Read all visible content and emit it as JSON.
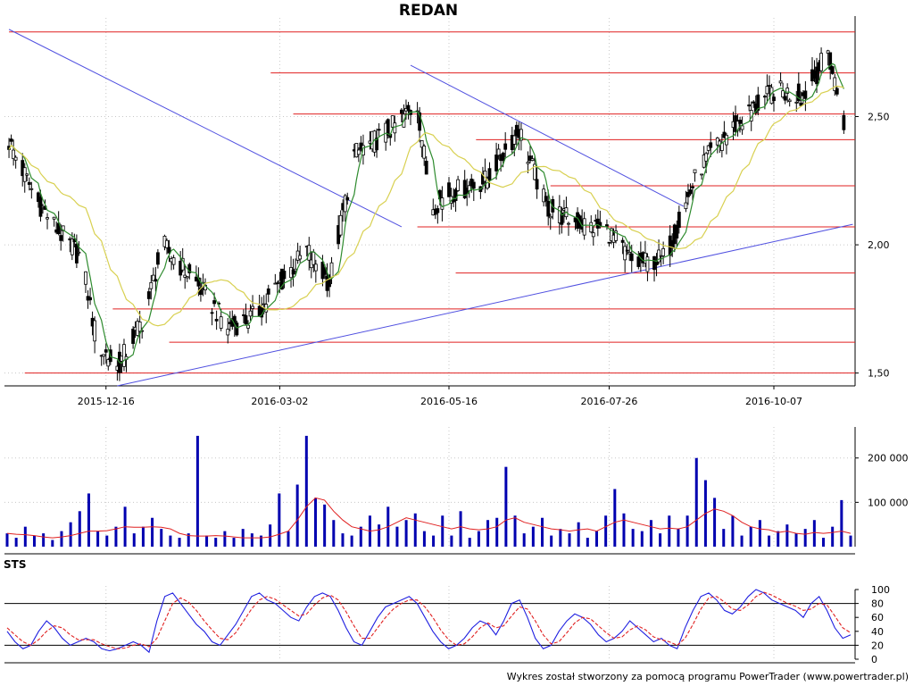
{
  "title": "REDAN",
  "sts_label": "STS",
  "footer": "Wykres został stworzony za pomocą programu PowerTrader (www.powertrader.pl)",
  "colors": {
    "candle": "#000000",
    "ma_short": "#2e8b2e",
    "ma_long": "#d8d050",
    "resistance_line": "#e02020",
    "trend_line": "#5050e0",
    "volume_bar": "#0000b0",
    "volume_ma": "#e02020",
    "stoch_k": "#2020e0",
    "stoch_d": "#e02020"
  },
  "chart_data": [
    {
      "type": "candlestick",
      "title": "REDAN",
      "x_ticks": [
        "2015-12-16",
        "2016-03-02",
        "2016-05-16",
        "2016-07-26",
        "2016-10-07"
      ],
      "y_ticks": [
        "1,50",
        "2,00",
        "2,50"
      ],
      "ylim": [
        1.45,
        2.85
      ],
      "grid": true,
      "approx_close_path": [
        {
          "date": "2015-11-03",
          "close": 2.4
        },
        {
          "date": "2015-11-15",
          "close": 2.18
        },
        {
          "date": "2015-11-25",
          "close": 2.05
        },
        {
          "date": "2015-12-05",
          "close": 1.95
        },
        {
          "date": "2015-12-12",
          "close": 1.62
        },
        {
          "date": "2015-12-21",
          "close": 1.52
        },
        {
          "date": "2016-01-02",
          "close": 1.72
        },
        {
          "date": "2016-01-10",
          "close": 2.0
        },
        {
          "date": "2016-01-25",
          "close": 1.85
        },
        {
          "date": "2016-02-08",
          "close": 1.68
        },
        {
          "date": "2016-02-20",
          "close": 1.72
        },
        {
          "date": "2016-03-02",
          "close": 1.85
        },
        {
          "date": "2016-03-14",
          "close": 1.98
        },
        {
          "date": "2016-03-24",
          "close": 1.85
        },
        {
          "date": "2016-04-04",
          "close": 2.35
        },
        {
          "date": "2016-04-20",
          "close": 2.45
        },
        {
          "date": "2016-05-02",
          "close": 2.55
        },
        {
          "date": "2016-05-08",
          "close": 2.15
        },
        {
          "date": "2016-05-16",
          "close": 2.2
        },
        {
          "date": "2016-06-01",
          "close": 2.25
        },
        {
          "date": "2016-06-16",
          "close": 2.45
        },
        {
          "date": "2016-06-28",
          "close": 2.15
        },
        {
          "date": "2016-07-08",
          "close": 2.1
        },
        {
          "date": "2016-07-26",
          "close": 2.05
        },
        {
          "date": "2016-08-06",
          "close": 1.92
        },
        {
          "date": "2016-08-20",
          "close": 1.95
        },
        {
          "date": "2016-09-04",
          "close": 2.3
        },
        {
          "date": "2016-09-18",
          "close": 2.45
        },
        {
          "date": "2016-10-07",
          "close": 2.6
        },
        {
          "date": "2016-10-20",
          "close": 2.58
        },
        {
          "date": "2016-10-31",
          "close": 2.75
        },
        {
          "date": "2016-11-07",
          "close": 2.48
        }
      ],
      "horizontal_levels": [
        2.83,
        2.67,
        2.51,
        2.41,
        2.23,
        2.07,
        1.89,
        1.75,
        1.62,
        1.5
      ],
      "trend_lines": [
        {
          "from": {
            "date": "2015-11-03",
            "value": 2.84
          },
          "to": {
            "date": "2016-04-25",
            "value": 2.07
          }
        },
        {
          "from": {
            "date": "2016-04-29",
            "value": 2.7
          },
          "to": {
            "date": "2016-08-28",
            "value": 2.15
          }
        },
        {
          "from": {
            "date": "2015-12-21",
            "value": 1.45
          },
          "to": {
            "date": "2016-11-11",
            "value": 2.08
          }
        }
      ]
    },
    {
      "type": "bar",
      "y_ticks": [
        "100 000",
        "200 000"
      ],
      "ylim": [
        0,
        270000
      ],
      "volumes": [
        30000,
        20000,
        45000,
        25000,
        30000,
        15000,
        35000,
        55000,
        80000,
        120000,
        35000,
        25000,
        45000,
        90000,
        30000,
        45000,
        65000,
        40000,
        25000,
        20000,
        30000,
        250000,
        25000,
        20000,
        35000,
        20000,
        40000,
        30000,
        25000,
        50000,
        120000,
        35000,
        140000,
        250000,
        110000,
        95000,
        60000,
        30000,
        25000,
        45000,
        70000,
        50000,
        90000,
        45000,
        60000,
        75000,
        35000,
        25000,
        70000,
        25000,
        80000,
        20000,
        35000,
        60000,
        65000,
        180000,
        70000,
        30000,
        45000,
        65000,
        25000,
        40000,
        30000,
        55000,
        20000,
        35000,
        70000,
        130000,
        75000,
        40000,
        35000,
        60000,
        30000,
        70000,
        40000,
        70000,
        200000,
        150000,
        110000,
        40000,
        70000,
        25000,
        45000,
        60000,
        25000,
        35000,
        50000,
        30000,
        40000,
        60000,
        20000,
        45000,
        105000,
        25000
      ],
      "volume_ma": [
        30000,
        28000,
        27000,
        25000,
        22000,
        20000,
        22000,
        25000,
        30000,
        35000,
        35000,
        36000,
        40000,
        45000,
        44000,
        44000,
        45000,
        44000,
        40000,
        30000,
        25000,
        24000,
        24000,
        25000,
        24000,
        22000,
        20000,
        20000,
        20000,
        22000,
        28000,
        35000,
        60000,
        90000,
        110000,
        105000,
        80000,
        60000,
        45000,
        40000,
        35000,
        38000,
        45000,
        55000,
        65000,
        60000,
        55000,
        50000,
        45000,
        40000,
        45000,
        40000,
        38000,
        40000,
        45000,
        60000,
        65000,
        55000,
        50000,
        45000,
        40000,
        38000,
        35000,
        38000,
        40000,
        35000,
        45000,
        55000,
        60000,
        55000,
        50000,
        45000,
        40000,
        42000,
        40000,
        45000,
        60000,
        75000,
        85000,
        80000,
        70000,
        55000,
        45000,
        40000,
        38000,
        32000,
        35000,
        30000,
        28000,
        32000,
        30000,
        32000,
        35000,
        30000
      ]
    },
    {
      "type": "line",
      "title": "STS",
      "y_ticks": [
        "0",
        "20",
        "40",
        "60",
        "80",
        "100"
      ],
      "ylim": [
        0,
        100
      ],
      "reference_levels": [
        20,
        80
      ],
      "series": [
        {
          "values": [
            40,
            25,
            15,
            20,
            40,
            55,
            45,
            30,
            20,
            25,
            30,
            25,
            15,
            12,
            15,
            20,
            25,
            20,
            10,
            55,
            90,
            95,
            80,
            65,
            50,
            40,
            25,
            20,
            35,
            50,
            70,
            90,
            95,
            85,
            80,
            70,
            60,
            55,
            75,
            90,
            95,
            90,
            70,
            45,
            25,
            20,
            40,
            60,
            75,
            80,
            85,
            90,
            80,
            60,
            40,
            25,
            15,
            20,
            30,
            45,
            55,
            50,
            35,
            55,
            80,
            85,
            60,
            30,
            15,
            20,
            40,
            55,
            65,
            60,
            50,
            35,
            25,
            30,
            40,
            55,
            45,
            35,
            25,
            30,
            20,
            15,
            45,
            70,
            90,
            95,
            85,
            70,
            65,
            75,
            90,
            100,
            95,
            85,
            80,
            75,
            70,
            60,
            80,
            90,
            70,
            45,
            30,
            35
          ]
        },
        {
          "values": [
            45,
            35,
            25,
            20,
            28,
            40,
            48,
            45,
            35,
            28,
            28,
            28,
            22,
            18,
            15,
            16,
            20,
            22,
            18,
            30,
            55,
            80,
            88,
            82,
            70,
            55,
            42,
            30,
            28,
            38,
            55,
            72,
            85,
            90,
            86,
            78,
            70,
            62,
            65,
            78,
            88,
            92,
            85,
            68,
            48,
            30,
            30,
            45,
            60,
            72,
            80,
            85,
            85,
            75,
            60,
            42,
            28,
            20,
            22,
            32,
            45,
            52,
            45,
            48,
            62,
            75,
            72,
            55,
            35,
            22,
            25,
            38,
            52,
            60,
            58,
            48,
            38,
            30,
            32,
            42,
            48,
            42,
            32,
            28,
            25,
            20,
            30,
            50,
            72,
            88,
            90,
            82,
            72,
            70,
            78,
            90,
            96,
            92,
            86,
            80,
            76,
            70,
            72,
            80,
            78,
            62,
            45,
            38
          ]
        }
      ]
    }
  ]
}
